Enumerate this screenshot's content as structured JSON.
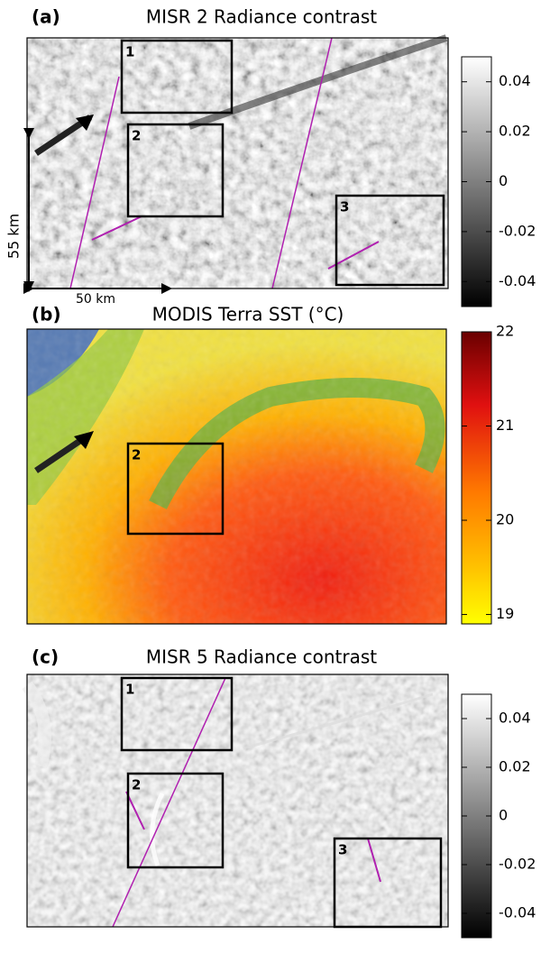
{
  "panels": [
    {
      "label": "(a)",
      "title": "MISR 2 Radiance contrast",
      "colorbar": {
        "lim": [
          -0.05,
          0.05
        ],
        "ticks": [
          0.04,
          0.02,
          0,
          -0.02,
          -0.04
        ]
      },
      "boxes": [
        "1",
        "2",
        "3"
      ],
      "scale": {
        "y": "55 km",
        "x": "50 km"
      }
    },
    {
      "label": "(b)",
      "title": "MODIS Terra SST (°C)",
      "colorbar": {
        "lim": [
          18.9,
          22.0
        ],
        "ticks": [
          22,
          21,
          20,
          19
        ]
      },
      "boxes": [
        "2"
      ]
    },
    {
      "label": "(c)",
      "title": "MISR 5 Radiance contrast",
      "colorbar": {
        "lim": [
          -0.05,
          0.05
        ],
        "ticks": [
          0.04,
          0.02,
          0,
          -0.02,
          -0.04
        ]
      },
      "boxes": [
        "1",
        "2",
        "3"
      ]
    }
  ]
}
